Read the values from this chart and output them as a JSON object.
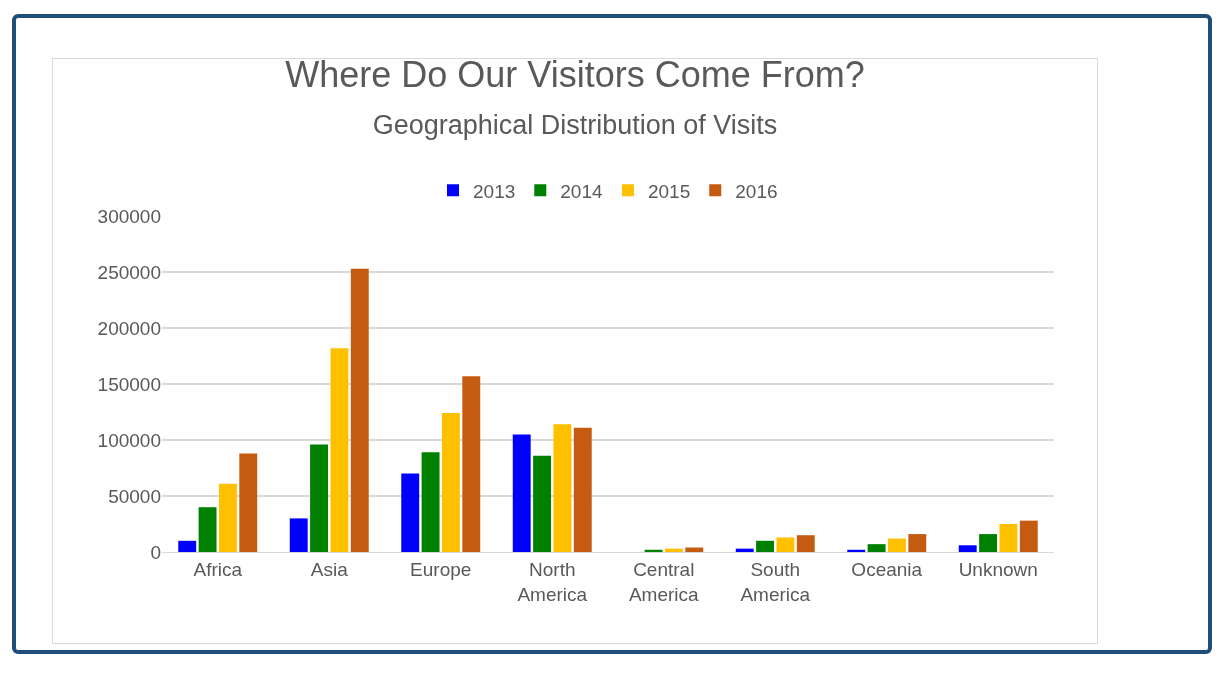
{
  "chart_data": {
    "type": "bar",
    "title": "Where Do Our Visitors Come From?",
    "subtitle": "Geographical Distribution of Visits",
    "categories": [
      "Africa",
      "Asia",
      "Europe",
      "North America",
      "Central America",
      "South America",
      "Oceania",
      "Unknown"
    ],
    "series": [
      {
        "name": "2013",
        "color": "#0000ff",
        "values": [
          10000,
          30000,
          70000,
          105000,
          0,
          3000,
          2000,
          6000
        ]
      },
      {
        "name": "2014",
        "color": "#008000",
        "values": [
          40000,
          96000,
          89000,
          86000,
          2000,
          10000,
          7000,
          16000
        ]
      },
      {
        "name": "2015",
        "color": "#ffc000",
        "values": [
          61000,
          182000,
          124000,
          114000,
          3000,
          13000,
          12000,
          25000
        ]
      },
      {
        "name": "2016",
        "color": "#c55a11",
        "values": [
          88000,
          253000,
          157000,
          111000,
          4000,
          15000,
          16000,
          28000
        ]
      }
    ],
    "ylim": [
      0,
      300000
    ],
    "yticks": [
      0,
      50000,
      100000,
      150000,
      200000,
      250000,
      300000
    ],
    "grid": "y",
    "legend": "top"
  }
}
